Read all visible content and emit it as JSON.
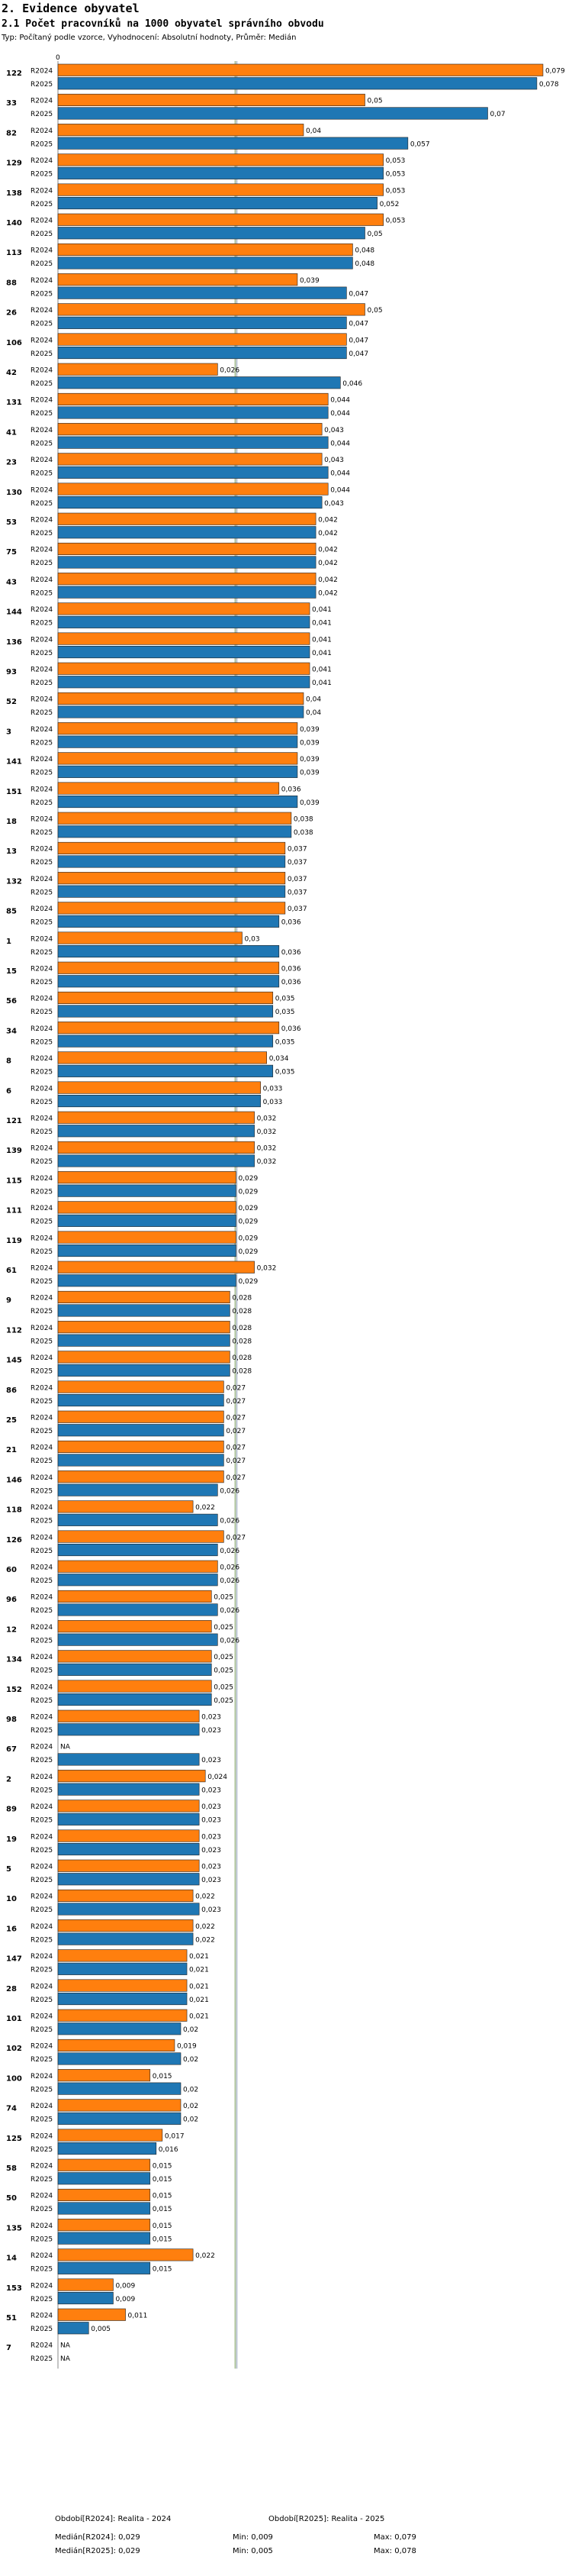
{
  "header": {
    "section": "2. Evidence obyvatel",
    "title": "2.1 Počet pracovníků na 1000 obyvatel správního obvodu",
    "subtitle": "Typ: Počítaný podle vzorce, Vyhodnocení: Absolutní hodnoty, Průměr: Medián"
  },
  "colors": {
    "r2024": "#ff7f0e",
    "r2025": "#1f77b4",
    "median2024": "#b3c8a0",
    "median2025": "#c0c8d8"
  },
  "chart_data": {
    "type": "bar",
    "orientation": "horizontal",
    "title": "2.1 Počet pracovníků na 1000 obyvatel správního obvodu",
    "axis_zero_label": "0",
    "xlim": [
      0,
      0.08
    ],
    "series_names": [
      "R2024",
      "R2025"
    ],
    "medians": {
      "R2024": 0.029,
      "R2025": 0.029
    },
    "categories": [
      "122",
      "33",
      "82",
      "129",
      "138",
      "140",
      "113",
      "88",
      "26",
      "106",
      "42",
      "131",
      "41",
      "23",
      "130",
      "53",
      "75",
      "43",
      "144",
      "136",
      "93",
      "52",
      "3",
      "141",
      "151",
      "18",
      "13",
      "132",
      "85",
      "1",
      "15",
      "56",
      "34",
      "8",
      "6",
      "121",
      "139",
      "115",
      "111",
      "119",
      "61",
      "9",
      "112",
      "145",
      "86",
      "25",
      "21",
      "146",
      "118",
      "126",
      "60",
      "96",
      "12",
      "134",
      "152",
      "98",
      "67",
      "2",
      "89",
      "19",
      "5",
      "10",
      "16",
      "147",
      "28",
      "101",
      "102",
      "100",
      "74",
      "125",
      "58",
      "50",
      "135",
      "14",
      "153",
      "51",
      "7"
    ],
    "series": [
      {
        "name": "R2024",
        "values": [
          0.079,
          0.05,
          0.04,
          0.053,
          0.053,
          0.053,
          0.048,
          0.039,
          0.05,
          0.047,
          0.026,
          0.044,
          0.043,
          0.043,
          0.044,
          0.042,
          0.042,
          0.042,
          0.041,
          0.041,
          0.041,
          0.04,
          0.039,
          0.039,
          0.036,
          0.038,
          0.037,
          0.037,
          0.037,
          0.03,
          0.036,
          0.035,
          0.036,
          0.034,
          0.033,
          0.032,
          0.032,
          0.029,
          0.029,
          0.029,
          0.032,
          0.028,
          0.028,
          0.028,
          0.027,
          0.027,
          0.027,
          0.027,
          0.022,
          0.027,
          0.026,
          0.025,
          0.025,
          0.025,
          0.025,
          0.023,
          null,
          0.024,
          0.023,
          0.023,
          0.023,
          0.022,
          0.022,
          0.021,
          0.021,
          0.021,
          0.019,
          0.015,
          0.02,
          0.017,
          0.015,
          0.015,
          0.015,
          0.022,
          0.009,
          0.011,
          null
        ]
      },
      {
        "name": "R2025",
        "values": [
          0.078,
          0.07,
          0.057,
          0.053,
          0.052,
          0.05,
          0.048,
          0.047,
          0.047,
          0.047,
          0.046,
          0.044,
          0.044,
          0.044,
          0.043,
          0.042,
          0.042,
          0.042,
          0.041,
          0.041,
          0.041,
          0.04,
          0.039,
          0.039,
          0.039,
          0.038,
          0.037,
          0.037,
          0.036,
          0.036,
          0.036,
          0.035,
          0.035,
          0.035,
          0.033,
          0.032,
          0.032,
          0.029,
          0.029,
          0.029,
          0.029,
          0.028,
          0.028,
          0.028,
          0.027,
          0.027,
          0.027,
          0.026,
          0.026,
          0.026,
          0.026,
          0.026,
          0.026,
          0.025,
          0.025,
          0.023,
          0.023,
          0.023,
          0.023,
          0.023,
          0.023,
          0.023,
          0.022,
          0.021,
          0.021,
          0.02,
          0.02,
          0.02,
          0.02,
          0.016,
          0.015,
          0.015,
          0.015,
          0.015,
          0.009,
          0.005,
          null
        ]
      }
    ],
    "na_label": "NA"
  },
  "footer": {
    "col1_title": "Období[R2024]: Realita - 2024",
    "col2_title": "Období[R2025]: Realita - 2025",
    "row1": [
      "Medián[R2024]: 0,029",
      "Min: 0,009",
      "Max: 0,079"
    ],
    "row2": [
      "Medián[R2025]: 0,029",
      "Min: 0,005",
      "Max: 0,078"
    ]
  }
}
